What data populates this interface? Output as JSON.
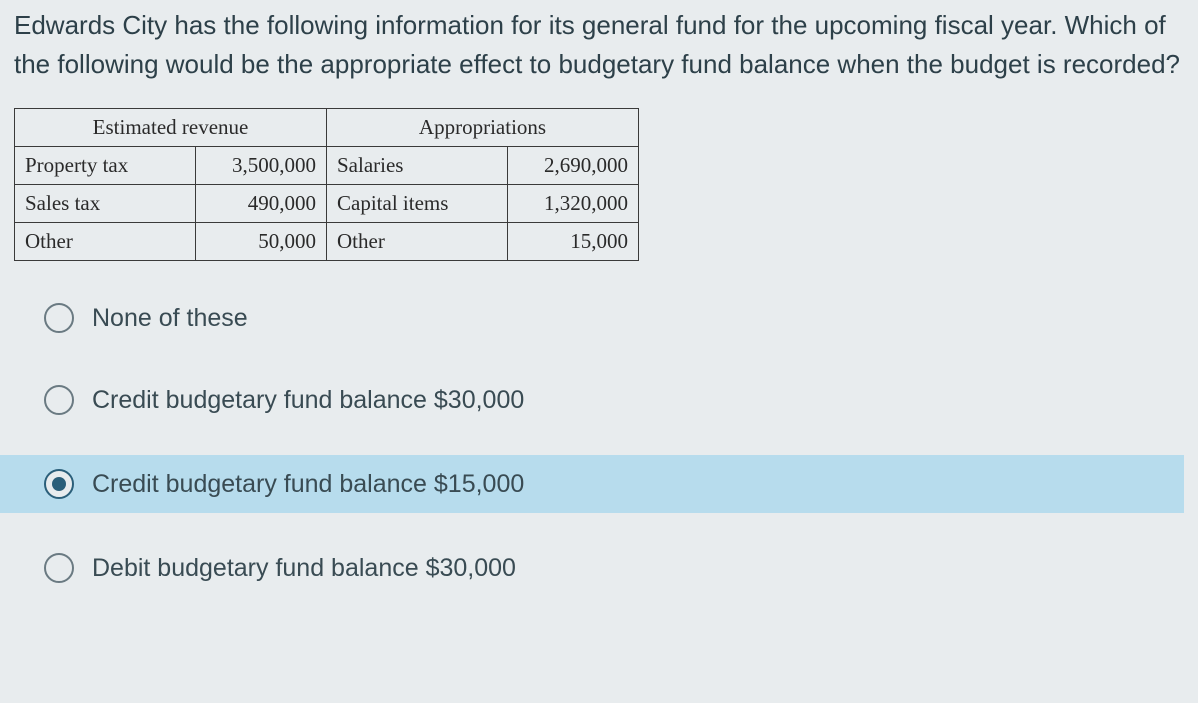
{
  "question_text": "Edwards City has the following information for its general fund for the upcoming fiscal year. Which of the following would be the appropriate effect to budgetary fund balance when the budget is recorded?",
  "table": {
    "headers": [
      "Estimated revenue",
      "Appropriations"
    ],
    "rows": [
      {
        "rev_label": "Property tax",
        "rev_value": "3,500,000",
        "app_label": "Salaries",
        "app_value": "2,690,000"
      },
      {
        "rev_label": "Sales tax",
        "rev_value": "490,000",
        "app_label": "Capital items",
        "app_value": "1,320,000"
      },
      {
        "rev_label": "Other",
        "rev_value": "50,000",
        "app_label": "Other",
        "app_value": "15,000"
      }
    ],
    "border_color": "#3a3a3a",
    "header_font": "Georgia",
    "cell_fontsize": 21
  },
  "options": [
    {
      "label": "None of these",
      "selected": false
    },
    {
      "label": "Credit budgetary fund balance $30,000",
      "selected": false
    },
    {
      "label": "Credit budgetary fund balance $15,000",
      "selected": true
    },
    {
      "label": "Debit budgetary fund balance $30,000",
      "selected": false
    }
  ],
  "colors": {
    "page_bg": "#e8ecee",
    "text": "#33464f",
    "highlight_bg": "#b7dced",
    "radio_border": "#6a7a82",
    "radio_selected": "#2b5f7a"
  }
}
